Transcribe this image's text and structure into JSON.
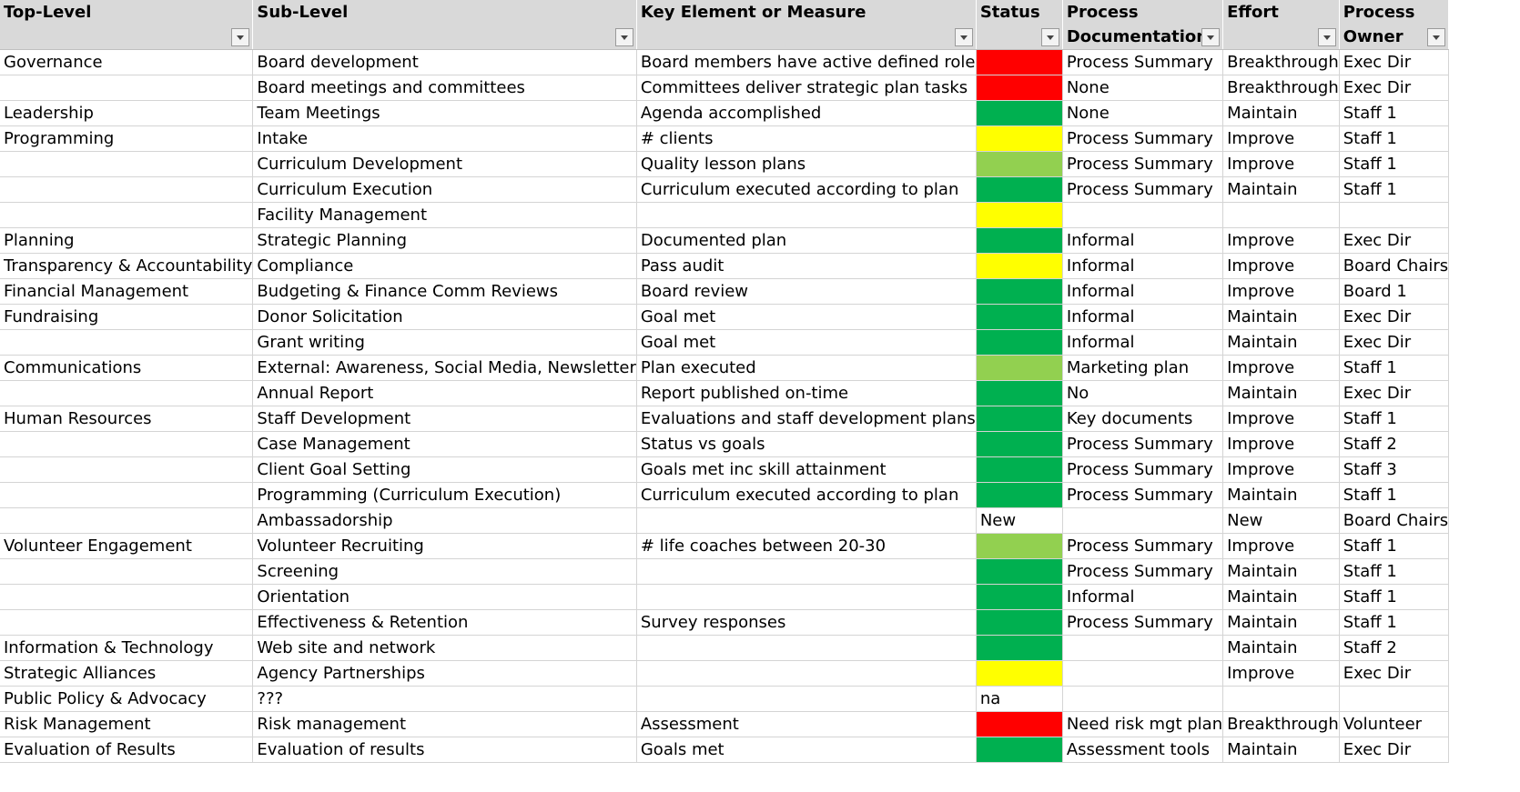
{
  "headers": [
    {
      "label_line1": "Top-Level",
      "label_line2": ""
    },
    {
      "label_line1": "Sub-Level",
      "label_line2": ""
    },
    {
      "label_line1": "Key Element or Measure",
      "label_line2": ""
    },
    {
      "label_line1": "Status",
      "label_line2": ""
    },
    {
      "label_line1": "Process",
      "label_line2": "Documentation"
    },
    {
      "label_line1": "Effort",
      "label_line2": ""
    },
    {
      "label_line1": "Process",
      "label_line2": "Owner"
    }
  ],
  "status_colors": {
    "red": "#ff0000",
    "green": "#00b050",
    "yellow": "#ffff00",
    "lightgreen": "#92d050",
    "none": "#ffffff"
  },
  "rows": [
    {
      "top": "Governance",
      "sub": "Board development",
      "key": "Board members have active defined role",
      "status": "red",
      "status_text": "",
      "doc": "Process Summary",
      "effort": "Breakthrough",
      "owner": "Exec Dir"
    },
    {
      "top": "",
      "sub": "Board meetings and committees",
      "key": "Committees deliver strategic plan tasks",
      "status": "red",
      "status_text": "",
      "doc": "None",
      "effort": "Breakthrough",
      "owner": "Exec Dir"
    },
    {
      "top": "Leadership",
      "sub": "Team Meetings",
      "key": "Agenda accomplished",
      "status": "green",
      "status_text": "",
      "doc": "None",
      "effort": "Maintain",
      "owner": "Staff 1"
    },
    {
      "top": "Programming",
      "sub": "Intake",
      "key": "# clients",
      "status": "yellow",
      "status_text": "",
      "doc": "Process Summary",
      "effort": "Improve",
      "owner": "Staff 1"
    },
    {
      "top": "",
      "sub": "Curriculum Development",
      "key": "Quality lesson plans",
      "status": "lightgreen",
      "status_text": "",
      "doc": "Process Summary",
      "effort": "Improve",
      "owner": "Staff 1"
    },
    {
      "top": "",
      "sub": "Curriculum Execution",
      "key": "Curriculum executed according to plan",
      "status": "green",
      "status_text": "",
      "doc": "Process Summary",
      "effort": "Maintain",
      "owner": "Staff 1"
    },
    {
      "top": "",
      "sub": "Facility Management",
      "key": "",
      "status": "yellow",
      "status_text": "",
      "doc": "",
      "effort": "",
      "owner": ""
    },
    {
      "top": "Planning",
      "sub": "Strategic Planning",
      "key": "Documented plan",
      "status": "green",
      "status_text": "",
      "doc": "Informal",
      "effort": "Improve",
      "owner": "Exec Dir"
    },
    {
      "top": "Transparency & Accountability",
      "sub": "Compliance",
      "key": "Pass audit",
      "status": "yellow",
      "status_text": "",
      "doc": "Informal",
      "effort": "Improve",
      "owner": "Board Chairs"
    },
    {
      "top": "Financial Management",
      "sub": "Budgeting & Finance Comm Reviews",
      "key": "Board review",
      "status": "green",
      "status_text": "",
      "doc": "Informal",
      "effort": "Improve",
      "owner": "Board 1"
    },
    {
      "top": "Fundraising",
      "sub": "Donor Solicitation",
      "key": "Goal met",
      "status": "green",
      "status_text": "",
      "doc": "Informal",
      "effort": "Maintain",
      "owner": "Exec Dir"
    },
    {
      "top": "",
      "sub": "Grant writing",
      "key": "Goal met",
      "status": "green",
      "status_text": "",
      "doc": "Informal",
      "effort": "Maintain",
      "owner": "Exec Dir"
    },
    {
      "top": "Communications",
      "sub": "External:  Awareness, Social Media, Newsletter",
      "key": "Plan executed",
      "status": "lightgreen",
      "status_text": "",
      "doc": "Marketing plan",
      "effort": "Improve",
      "owner": "Staff 1"
    },
    {
      "top": "",
      "sub": "Annual Report",
      "key": "Report published on-time",
      "status": "green",
      "status_text": "",
      "doc": "No",
      "effort": "Maintain",
      "owner": "Exec Dir"
    },
    {
      "top": "Human Resources",
      "sub": "Staff Development",
      "key": "Evaluations and staff development plans",
      "status": "green",
      "status_text": "",
      "doc": "Key documents",
      "effort": "Improve",
      "owner": "Staff 1"
    },
    {
      "top": "",
      "sub": "Case Management",
      "key": "Status vs goals",
      "status": "green",
      "status_text": "",
      "doc": "Process Summary",
      "effort": "Improve",
      "owner": "Staff 2"
    },
    {
      "top": "",
      "sub": "Client Goal Setting",
      "key": "Goals met inc skill attainment",
      "status": "green",
      "status_text": "",
      "doc": "Process Summary",
      "effort": "Improve",
      "owner": "Staff 3"
    },
    {
      "top": "",
      "sub": "Programming (Curriculum Execution)",
      "key": "Curriculum executed according to plan",
      "status": "green",
      "status_text": "",
      "doc": "Process Summary",
      "effort": "Maintain",
      "owner": "Staff 1"
    },
    {
      "top": "",
      "sub": "Ambassadorship",
      "key": "",
      "status": "none",
      "status_text": "New",
      "doc": "",
      "effort": "New",
      "owner": "Board Chairs"
    },
    {
      "top": "Volunteer Engagement",
      "sub": "Volunteer Recruiting",
      "key": "# life coaches between 20-30",
      "status": "lightgreen",
      "status_text": "",
      "doc": "Process Summary",
      "effort": "Improve",
      "owner": "Staff 1"
    },
    {
      "top": "",
      "sub": "Screening",
      "key": "",
      "status": "green",
      "status_text": "",
      "doc": "Process Summary",
      "effort": "Maintain",
      "owner": "Staff 1"
    },
    {
      "top": "",
      "sub": "Orientation",
      "key": "",
      "status": "green",
      "status_text": "",
      "doc": "Informal",
      "effort": "Maintain",
      "owner": "Staff 1"
    },
    {
      "top": "",
      "sub": "Effectiveness & Retention",
      "key": "Survey responses",
      "status": "green",
      "status_text": "",
      "doc": "Process Summary",
      "effort": "Maintain",
      "owner": "Staff 1"
    },
    {
      "top": "Information & Technology",
      "sub": "Web site and network",
      "key": "",
      "status": "green",
      "status_text": "",
      "doc": "",
      "effort": "Maintain",
      "owner": "Staff 2"
    },
    {
      "top": "Strategic Alliances",
      "sub": "Agency Partnerships",
      "key": "",
      "status": "yellow",
      "status_text": "",
      "doc": "",
      "effort": "Improve",
      "owner": "Exec Dir"
    },
    {
      "top": "Public Policy & Advocacy",
      "sub": "???",
      "key": "",
      "status": "none",
      "status_text": "na",
      "doc": "",
      "effort": "",
      "owner": ""
    },
    {
      "top": "Risk Management",
      "sub": "Risk management",
      "key": "Assessment",
      "status": "red",
      "status_text": "",
      "doc": "Need risk mgt plan",
      "effort": "Breakthrough",
      "owner": "Volunteer"
    },
    {
      "top": "Evaluation of Results",
      "sub": "Evaluation of results",
      "key": "Goals met",
      "status": "green",
      "status_text": "",
      "doc": "Assessment tools",
      "effort": "Maintain",
      "owner": "Exec Dir"
    }
  ]
}
